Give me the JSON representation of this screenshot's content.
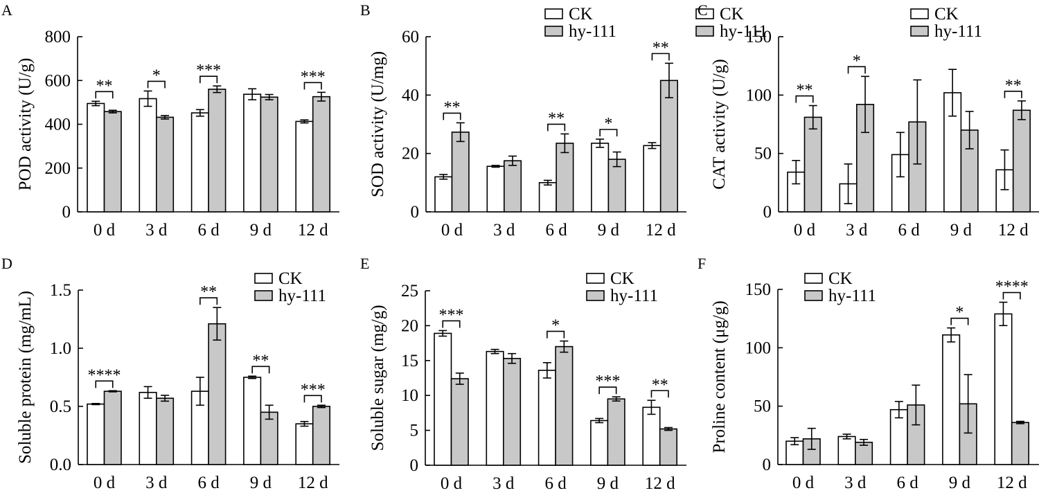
{
  "colors": {
    "ck": "#ffffff",
    "hy": "#c8c8c8",
    "stroke": "#000000"
  },
  "legend": [
    "CK",
    "hy-111"
  ],
  "chart_data": [
    {
      "panel": "A",
      "type": "bar",
      "title": "",
      "ylabel": "POD activity (U/g)",
      "xlabel": "",
      "categories": [
        "0 d",
        "3 d",
        "6 d",
        "9 d",
        "12 d"
      ],
      "ylim": [
        0,
        800
      ],
      "yticks": [
        0,
        200,
        400,
        600,
        800
      ],
      "ytick_labels": [
        "0",
        "200",
        "400",
        "600",
        "800"
      ],
      "legend_position": "top-right",
      "series": [
        {
          "name": "CK",
          "values": [
            495,
            517,
            452,
            537,
            413
          ],
          "errors": [
            10,
            35,
            15,
            25,
            7
          ]
        },
        {
          "name": "hy-111",
          "values": [
            458,
            432,
            560,
            524,
            526
          ],
          "errors": [
            6,
            8,
            15,
            12,
            20
          ]
        }
      ],
      "significance": [
        "**",
        "*",
        "***",
        "",
        "***"
      ]
    },
    {
      "panel": "B",
      "type": "bar",
      "title": "",
      "ylabel": "SOD activity (U/mg)",
      "xlabel": "",
      "categories": [
        "0 d",
        "3 d",
        "6 d",
        "9 d",
        "12 d"
      ],
      "ylim": [
        0,
        60
      ],
      "yticks": [
        0,
        20,
        40,
        60
      ],
      "ytick_labels": [
        "0",
        "20",
        "40",
        "60"
      ],
      "legend_position": "top-right",
      "series": [
        {
          "name": "CK",
          "values": [
            12.0,
            15.6,
            10.0,
            23.5,
            22.7
          ],
          "errors": [
            0.8,
            0.3,
            0.8,
            1.4,
            1.0
          ]
        },
        {
          "name": "hy-111",
          "values": [
            27.3,
            17.5,
            23.5,
            18.0,
            45.0
          ],
          "errors": [
            3.2,
            1.6,
            3.2,
            2.5,
            5.9
          ]
        }
      ],
      "significance": [
        "**",
        "",
        "**",
        "*",
        "**"
      ]
    },
    {
      "panel": "C",
      "type": "bar",
      "title": "",
      "ylabel": "CAT activity (U/g)",
      "xlabel": "",
      "categories": [
        "0 d",
        "3 d",
        "6 d",
        "9 d",
        "12 d"
      ],
      "ylim": [
        0,
        150
      ],
      "yticks": [
        0,
        50,
        100,
        150
      ],
      "ytick_labels": [
        "0",
        "50",
        "100",
        "150"
      ],
      "legend_position": "top-right",
      "series": [
        {
          "name": "CK",
          "values": [
            34,
            24,
            49,
            102,
            36
          ],
          "errors": [
            10,
            17,
            19,
            20,
            17
          ]
        },
        {
          "name": "hy-111",
          "values": [
            81,
            92,
            77,
            70,
            87
          ],
          "errors": [
            10,
            24,
            36,
            16,
            8
          ]
        }
      ],
      "significance": [
        "**",
        "*",
        "",
        "",
        "**"
      ]
    },
    {
      "panel": "D",
      "type": "bar",
      "title": "",
      "ylabel": "Soluble protein (mg/mL)",
      "xlabel": "",
      "categories": [
        "0 d",
        "3 d",
        "6 d",
        "9 d",
        "12 d"
      ],
      "ylim": [
        0,
        1.5
      ],
      "yticks": [
        0,
        0.5,
        1.0,
        1.5
      ],
      "ytick_labels": [
        "0.0",
        "0.5",
        "1.0",
        "1.5"
      ],
      "legend_position": "top-right",
      "series": [
        {
          "name": "CK",
          "values": [
            0.52,
            0.62,
            0.63,
            0.75,
            0.35
          ],
          "errors": [
            0.005,
            0.05,
            0.12,
            0.01,
            0.02
          ]
        },
        {
          "name": "hy-111",
          "values": [
            0.63,
            0.57,
            1.21,
            0.45,
            0.5
          ],
          "errors": [
            0.005,
            0.025,
            0.14,
            0.06,
            0.01
          ]
        }
      ],
      "significance": [
        "****",
        "",
        "**",
        "**",
        "***"
      ]
    },
    {
      "panel": "E",
      "type": "bar",
      "title": "",
      "ylabel": "Soluble sugar (mg/g)",
      "xlabel": "",
      "categories": [
        "0 d",
        "3 d",
        "6 d",
        "9 d",
        "12 d"
      ],
      "ylim": [
        0,
        25
      ],
      "yticks": [
        0,
        5,
        10,
        15,
        20,
        25
      ],
      "ytick_labels": [
        "0",
        "5",
        "10",
        "15",
        "20",
        "25"
      ],
      "legend_position": "top-right",
      "series": [
        {
          "name": "CK",
          "values": [
            18.9,
            16.3,
            13.6,
            6.4,
            8.3
          ],
          "errors": [
            0.4,
            0.3,
            1.1,
            0.3,
            1.0
          ]
        },
        {
          "name": "hy-111",
          "values": [
            12.4,
            15.3,
            17.0,
            9.5,
            5.2
          ],
          "errors": [
            0.8,
            0.7,
            0.8,
            0.3,
            0.2
          ]
        }
      ],
      "significance": [
        "***",
        "",
        "*",
        "***",
        "**"
      ]
    },
    {
      "panel": "F",
      "type": "bar",
      "title": "",
      "ylabel": "Proline content (μg/g)",
      "xlabel": "",
      "categories": [
        "0 d",
        "3 d",
        "6 d",
        "9 d",
        "12 d"
      ],
      "ylim": [
        0,
        150
      ],
      "yticks": [
        0,
        50,
        100,
        150
      ],
      "ytick_labels": [
        "0",
        "50",
        "100",
        "150"
      ],
      "legend_position": "top-left",
      "series": [
        {
          "name": "CK",
          "values": [
            20,
            24,
            47,
            111,
            129
          ],
          "errors": [
            3,
            2,
            7,
            6,
            10
          ]
        },
        {
          "name": "hy-111",
          "values": [
            22,
            19,
            51,
            52,
            36
          ],
          "errors": [
            9,
            2.5,
            17,
            25,
            1
          ]
        }
      ],
      "significance": [
        "",
        "",
        "",
        "*",
        "****"
      ]
    }
  ]
}
